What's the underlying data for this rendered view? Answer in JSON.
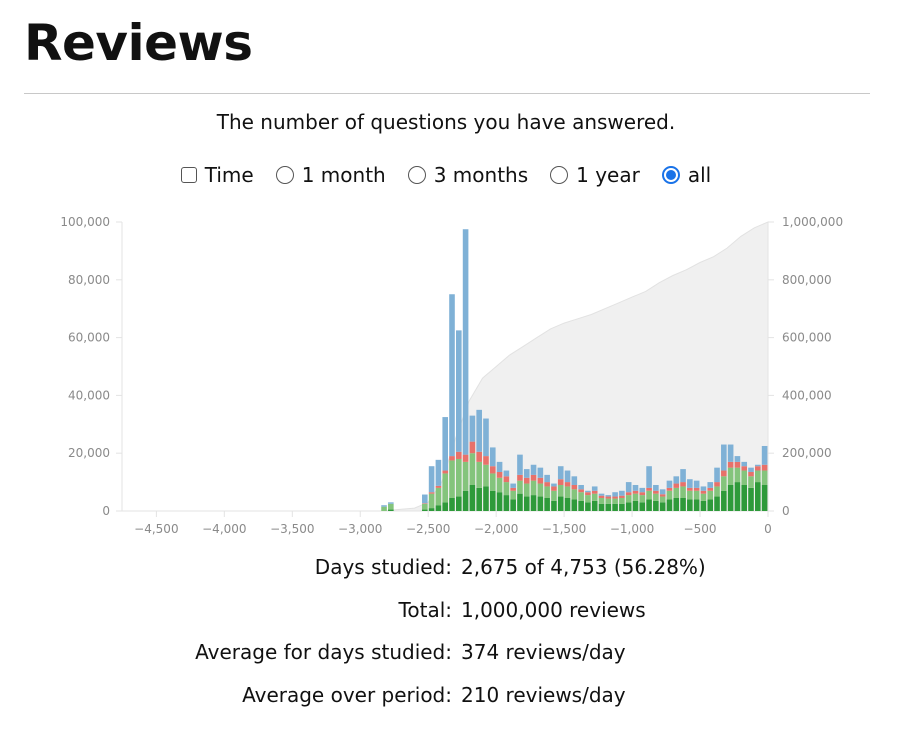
{
  "header": {
    "title": "Reviews"
  },
  "subtitle": "The number of questions you have answered.",
  "controls": {
    "time_checkbox": {
      "label": "Time",
      "checked": false
    },
    "ranges": [
      {
        "label": "1 month",
        "selected": false
      },
      {
        "label": "3 months",
        "selected": false
      },
      {
        "label": "1 year",
        "selected": false
      },
      {
        "label": "all",
        "selected": true
      }
    ]
  },
  "colors": {
    "mature": "#2e9a3a",
    "young": "#84c47c",
    "relearn": "#e8716a",
    "learn": "#7fb1d6",
    "cumulative": "#f0f0f0",
    "accent": "#1a73e8"
  },
  "chart_data": {
    "type": "bar",
    "stacked": true,
    "xlim": [
      -4753,
      0
    ],
    "x_ticks": [
      "−4,500",
      "−4,000",
      "−3,500",
      "−3,000",
      "−2,500",
      "−2,000",
      "−1,500",
      "−1,000",
      "−500",
      "0"
    ],
    "x_tick_values": [
      -4500,
      -4000,
      -3500,
      -3000,
      -2500,
      -2000,
      -1500,
      -1000,
      -500,
      0
    ],
    "ylim": [
      0,
      100000
    ],
    "y_ticks": [
      "0",
      "20,000",
      "40,000",
      "60,000",
      "80,000",
      "100,000"
    ],
    "y_tick_values": [
      0,
      20000,
      40000,
      60000,
      80000,
      100000
    ],
    "y2lim": [
      0,
      1000000
    ],
    "y2_ticks": [
      "0",
      "200,000",
      "400,000",
      "600,000",
      "800,000",
      "1,000,000"
    ],
    "y2_tick_values": [
      0,
      200000,
      400000,
      600000,
      800000,
      1000000
    ],
    "bin_days": 50,
    "series_order": [
      "mature",
      "young",
      "relearn",
      "learn"
    ],
    "bins": [
      {
        "x": -2825,
        "mature": 0,
        "young": 1500,
        "relearn": 0,
        "learn": 500
      },
      {
        "x": -2775,
        "mature": 500,
        "young": 2000,
        "relearn": 0,
        "learn": 500
      },
      {
        "x": -2525,
        "mature": 500,
        "young": 2000,
        "relearn": 200,
        "learn": 3000
      },
      {
        "x": -2475,
        "mature": 1000,
        "young": 5000,
        "relearn": 500,
        "learn": 9000
      },
      {
        "x": -2425,
        "mature": 2000,
        "young": 6000,
        "relearn": 700,
        "learn": 9000
      },
      {
        "x": -2375,
        "mature": 3000,
        "young": 10000,
        "relearn": 1000,
        "learn": 18500
      },
      {
        "x": -2325,
        "mature": 4500,
        "young": 13000,
        "relearn": 1500,
        "learn": 56000
      },
      {
        "x": -2275,
        "mature": 5000,
        "young": 13000,
        "relearn": 2500,
        "learn": 42000
      },
      {
        "x": -2225,
        "mature": 7000,
        "young": 10000,
        "relearn": 2500,
        "learn": 78000
      },
      {
        "x": -2175,
        "mature": 9000,
        "young": 11000,
        "relearn": 4000,
        "learn": 9000
      },
      {
        "x": -2125,
        "mature": 8000,
        "young": 9000,
        "relearn": 3500,
        "learn": 14500
      },
      {
        "x": -2075,
        "mature": 8500,
        "young": 7500,
        "relearn": 3000,
        "learn": 13000
      },
      {
        "x": -2025,
        "mature": 7000,
        "young": 6000,
        "relearn": 2500,
        "learn": 6500
      },
      {
        "x": -1975,
        "mature": 6500,
        "young": 5000,
        "relearn": 2000,
        "learn": 3500
      },
      {
        "x": -1925,
        "mature": 5500,
        "young": 4500,
        "relearn": 2000,
        "learn": 2000
      },
      {
        "x": -1875,
        "mature": 4000,
        "young": 3000,
        "relearn": 1000,
        "learn": 1500
      },
      {
        "x": -1825,
        "mature": 6000,
        "young": 4500,
        "relearn": 2000,
        "learn": 7000
      },
      {
        "x": -1775,
        "mature": 5000,
        "young": 4500,
        "relearn": 2000,
        "learn": 3000
      },
      {
        "x": -1725,
        "mature": 5500,
        "young": 5000,
        "relearn": 2000,
        "learn": 3500
      },
      {
        "x": -1675,
        "mature": 5000,
        "young": 4500,
        "relearn": 2000,
        "learn": 3500
      },
      {
        "x": -1625,
        "mature": 4500,
        "young": 4000,
        "relearn": 1500,
        "learn": 2500
      },
      {
        "x": -1575,
        "mature": 3500,
        "young": 3500,
        "relearn": 1500,
        "learn": 1000
      },
      {
        "x": -1525,
        "mature": 5000,
        "young": 4000,
        "relearn": 2000,
        "learn": 4500
      },
      {
        "x": -1475,
        "mature": 4500,
        "young": 4000,
        "relearn": 1500,
        "learn": 4000
      },
      {
        "x": -1425,
        "mature": 4000,
        "young": 3500,
        "relearn": 1500,
        "learn": 3000
      },
      {
        "x": -1375,
        "mature": 3500,
        "young": 3000,
        "relearn": 1000,
        "learn": 1500
      },
      {
        "x": -1325,
        "mature": 3000,
        "young": 2500,
        "relearn": 1000,
        "learn": 500
      },
      {
        "x": -1275,
        "mature": 3500,
        "young": 2500,
        "relearn": 1000,
        "learn": 1500
      },
      {
        "x": -1225,
        "mature": 2500,
        "young": 2000,
        "relearn": 800,
        "learn": 700
      },
      {
        "x": -1175,
        "mature": 2500,
        "young": 1800,
        "relearn": 700,
        "learn": 500
      },
      {
        "x": -1125,
        "mature": 2500,
        "young": 1800,
        "relearn": 700,
        "learn": 1500
      },
      {
        "x": -1075,
        "mature": 2500,
        "young": 2000,
        "relearn": 800,
        "learn": 1700
      },
      {
        "x": -1025,
        "mature": 3000,
        "young": 2500,
        "relearn": 1000,
        "learn": 3500
      },
      {
        "x": -975,
        "mature": 3500,
        "young": 2500,
        "relearn": 1000,
        "learn": 2000
      },
      {
        "x": -925,
        "mature": 3000,
        "young": 2500,
        "relearn": 1000,
        "learn": 1500
      },
      {
        "x": -875,
        "mature": 4000,
        "young": 3000,
        "relearn": 1000,
        "learn": 7500
      },
      {
        "x": -825,
        "mature": 3500,
        "young": 2500,
        "relearn": 1000,
        "learn": 2000
      },
      {
        "x": -775,
        "mature": 3000,
        "young": 2000,
        "relearn": 800,
        "learn": 1700
      },
      {
        "x": -725,
        "mature": 4000,
        "young": 3000,
        "relearn": 1000,
        "learn": 2500
      },
      {
        "x": -675,
        "mature": 4500,
        "young": 3500,
        "relearn": 1500,
        "learn": 2500
      },
      {
        "x": -625,
        "mature": 4500,
        "young": 4000,
        "relearn": 1500,
        "learn": 4500
      },
      {
        "x": -575,
        "mature": 4000,
        "young": 3000,
        "relearn": 1000,
        "learn": 3000
      },
      {
        "x": -525,
        "mature": 4000,
        "young": 3000,
        "relearn": 1000,
        "learn": 2500
      },
      {
        "x": -475,
        "mature": 3500,
        "young": 2500,
        "relearn": 1000,
        "learn": 1500
      },
      {
        "x": -425,
        "mature": 4000,
        "young": 3000,
        "relearn": 1000,
        "learn": 2000
      },
      {
        "x": -375,
        "mature": 5000,
        "young": 3500,
        "relearn": 1500,
        "learn": 5000
      },
      {
        "x": -325,
        "mature": 7000,
        "young": 5000,
        "relearn": 2000,
        "learn": 9000
      },
      {
        "x": -275,
        "mature": 9000,
        "young": 6000,
        "relearn": 2000,
        "learn": 6000
      },
      {
        "x": -225,
        "mature": 10000,
        "young": 5000,
        "relearn": 2000,
        "learn": 2000
      },
      {
        "x": -175,
        "mature": 9000,
        "young": 5000,
        "relearn": 1500,
        "learn": 1500
      },
      {
        "x": -125,
        "mature": 8000,
        "young": 4000,
        "relearn": 1500,
        "learn": 1500
      },
      {
        "x": -75,
        "mature": 10000,
        "young": 4000,
        "relearn": 1500,
        "learn": 500
      },
      {
        "x": -25,
        "mature": 9000,
        "young": 5000,
        "relearn": 2000,
        "learn": 6500
      }
    ],
    "cumulative": [
      [
        -2850,
        0
      ],
      [
        -2600,
        10000
      ],
      [
        -2500,
        30000
      ],
      [
        -2400,
        100000
      ],
      [
        -2300,
        250000
      ],
      [
        -2200,
        380000
      ],
      [
        -2100,
        460000
      ],
      [
        -2000,
        500000
      ],
      [
        -1900,
        540000
      ],
      [
        -1800,
        570000
      ],
      [
        -1700,
        600000
      ],
      [
        -1600,
        630000
      ],
      [
        -1500,
        650000
      ],
      [
        -1400,
        665000
      ],
      [
        -1300,
        680000
      ],
      [
        -1200,
        700000
      ],
      [
        -1100,
        720000
      ],
      [
        -1000,
        740000
      ],
      [
        -900,
        760000
      ],
      [
        -800,
        790000
      ],
      [
        -700,
        815000
      ],
      [
        -600,
        835000
      ],
      [
        -500,
        860000
      ],
      [
        -400,
        880000
      ],
      [
        -300,
        910000
      ],
      [
        -200,
        950000
      ],
      [
        -100,
        980000
      ],
      [
        0,
        1000000
      ]
    ]
  },
  "stats": [
    {
      "label": "Days studied:",
      "value": "2,675 of 4,753 (56.28%)"
    },
    {
      "label": "Total:",
      "value": "1,000,000 reviews"
    },
    {
      "label": "Average for days studied:",
      "value": "374 reviews/day"
    },
    {
      "label": "Average over period:",
      "value": "210 reviews/day"
    }
  ]
}
